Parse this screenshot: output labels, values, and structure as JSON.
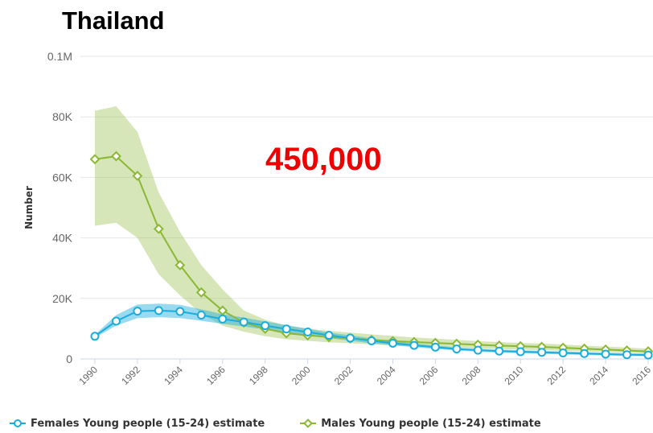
{
  "chart_data": {
    "type": "line",
    "title": "Thailand",
    "annotation": "450,000",
    "ylabel": "Number",
    "xlabel": "",
    "ylim": [
      0,
      100000
    ],
    "yticks": [
      {
        "value": 0,
        "label": "0"
      },
      {
        "value": 20000,
        "label": "20K"
      },
      {
        "value": 40000,
        "label": "40K"
      },
      {
        "value": 60000,
        "label": "60K"
      },
      {
        "value": 80000,
        "label": "80K"
      },
      {
        "value": 100000,
        "label": "0.1M"
      }
    ],
    "xlim": [
      1990,
      2016
    ],
    "xticks": [
      1990,
      1992,
      1994,
      1996,
      1998,
      2000,
      2002,
      2004,
      2006,
      2008,
      2010,
      2012,
      2014,
      2016
    ],
    "x": [
      1990,
      1991,
      1992,
      1993,
      1994,
      1995,
      1996,
      1997,
      1998,
      1999,
      2000,
      2001,
      2002,
      2003,
      2004,
      2005,
      2006,
      2007,
      2008,
      2009,
      2010,
      2011,
      2012,
      2013,
      2014,
      2015,
      2016
    ],
    "grid": true,
    "legend_position": "bottom",
    "series": [
      {
        "name": "Females Young people (15-24) estimate",
        "color": "#1aaddc",
        "band_color": "#1aaddc",
        "marker": "circle",
        "values": [
          7500,
          12500,
          15800,
          16000,
          15700,
          14500,
          13200,
          12200,
          11000,
          9900,
          8900,
          7800,
          6900,
          6000,
          5200,
          4500,
          3900,
          3300,
          2900,
          2600,
          2400,
          2200,
          2000,
          1800,
          1600,
          1400,
          1300
        ],
        "lower": [
          7000,
          11000,
          13500,
          13800,
          13500,
          12600,
          11600,
          10700,
          9700,
          8700,
          7900,
          6900,
          6000,
          5200,
          4500,
          3900,
          3300,
          2800,
          2400,
          2100,
          1900,
          1700,
          1500,
          1300,
          1150,
          1000,
          900
        ],
        "upper": [
          8000,
          14500,
          18000,
          18300,
          17900,
          16400,
          14800,
          13700,
          12400,
          11200,
          10000,
          8700,
          7800,
          6800,
          5900,
          5100,
          4500,
          3800,
          3400,
          3100,
          2900,
          2700,
          2500,
          2300,
          2100,
          1900,
          1800
        ]
      },
      {
        "name": "Males Young people (15-24) estimate",
        "color": "#8ab833",
        "band_color": "#8ab833",
        "marker": "diamond",
        "values": [
          66000,
          67000,
          60500,
          43000,
          31000,
          22000,
          16000,
          12000,
          10000,
          8500,
          7800,
          7200,
          6800,
          6300,
          5900,
          5600,
          5300,
          5000,
          4700,
          4400,
          4200,
          4000,
          3700,
          3400,
          3100,
          2800,
          2500
        ],
        "lower": [
          44000,
          45000,
          40000,
          28000,
          21000,
          15000,
          11000,
          9000,
          7500,
          6500,
          6000,
          5500,
          5200,
          4800,
          4500,
          4200,
          4000,
          3800,
          3500,
          3300,
          3100,
          2900,
          2700,
          2500,
          2300,
          2100,
          1800
        ],
        "upper": [
          82000,
          83500,
          75000,
          55000,
          42000,
          31000,
          23000,
          16000,
          13000,
          11000,
          10000,
          9300,
          8700,
          8100,
          7600,
          7100,
          6700,
          6300,
          5900,
          5600,
          5300,
          5100,
          4800,
          4400,
          4100,
          3800,
          3400
        ]
      }
    ]
  }
}
